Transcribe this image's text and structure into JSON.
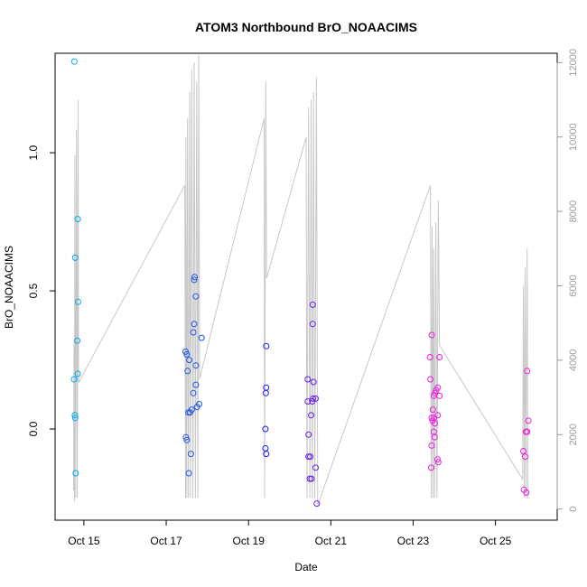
{
  "chart_data": {
    "type": "scatter",
    "title": "ATOM3 Northbound BrO_NOAACIMS",
    "xlabel": "Date",
    "ylabel": "BrO_NOAACIMS",
    "x_unit": "days (October)",
    "xlim": [
      14.3,
      26.5
    ],
    "ylim": [
      -0.33,
      1.36
    ],
    "x_ticks": [
      15,
      17,
      19,
      21,
      23,
      25
    ],
    "x_tick_labels": [
      "Oct 15",
      "Oct 17",
      "Oct 19",
      "Oct 21",
      "Oct 23",
      "Oct 25"
    ],
    "y_ticks": [
      0.0,
      0.5,
      1.0
    ],
    "y_tick_labels": [
      "0.0",
      "0.5",
      "1.0"
    ],
    "y2_ticks": [
      0,
      2000,
      4000,
      6000,
      8000,
      10000,
      12000
    ],
    "y2_tick_labels": [
      "0",
      "2000",
      "4000",
      "6000",
      "8000",
      "10000",
      "12000"
    ],
    "y2lim": [
      -300,
      12250
    ],
    "grid": false,
    "colors": {
      "altitude_line": "#c8c8c8",
      "axis": "#000000",
      "right_axis": "#9a9a9a",
      "point_scale": [
        "#00aaee",
        "#1e56e6",
        "#1a1aee",
        "#6a20e8",
        "#b51ae0",
        "#ee1ae0"
      ]
    },
    "series": [
      {
        "points": [
          {
            "x": 14.77,
            "y": 1.33,
            "c": 0
          },
          {
            "x": 14.85,
            "y": 0.76,
            "c": 0
          },
          {
            "x": 14.79,
            "y": 0.62,
            "c": 0
          },
          {
            "x": 14.86,
            "y": 0.46,
            "c": 0
          },
          {
            "x": 14.84,
            "y": 0.32,
            "c": 0
          },
          {
            "x": 14.85,
            "y": 0.2,
            "c": 0
          },
          {
            "x": 14.76,
            "y": 0.18,
            "c": 0
          },
          {
            "x": 14.78,
            "y": 0.05,
            "c": 0
          },
          {
            "x": 14.79,
            "y": 0.04,
            "c": 0
          },
          {
            "x": 14.8,
            "y": -0.16,
            "c": 0
          },
          {
            "x": 17.47,
            "y": 0.28,
            "c": 1
          },
          {
            "x": 17.5,
            "y": 0.27,
            "c": 1
          },
          {
            "x": 17.56,
            "y": 0.25,
            "c": 1
          },
          {
            "x": 17.52,
            "y": 0.21,
            "c": 1
          },
          {
            "x": 17.72,
            "y": 0.23,
            "c": 1
          },
          {
            "x": 17.68,
            "y": 0.54,
            "c": 1
          },
          {
            "x": 17.69,
            "y": 0.55,
            "c": 1
          },
          {
            "x": 17.72,
            "y": 0.48,
            "c": 1
          },
          {
            "x": 17.68,
            "y": 0.38,
            "c": 1
          },
          {
            "x": 17.66,
            "y": 0.35,
            "c": 1
          },
          {
            "x": 17.86,
            "y": 0.33,
            "c": 1
          },
          {
            "x": 17.72,
            "y": 0.16,
            "c": 1
          },
          {
            "x": 17.66,
            "y": 0.13,
            "c": 1
          },
          {
            "x": 17.8,
            "y": 0.09,
            "c": 1
          },
          {
            "x": 17.75,
            "y": 0.08,
            "c": 1
          },
          {
            "x": 17.54,
            "y": 0.06,
            "c": 1
          },
          {
            "x": 17.58,
            "y": 0.06,
            "c": 1
          },
          {
            "x": 17.62,
            "y": 0.07,
            "c": 1
          },
          {
            "x": 17.48,
            "y": -0.03,
            "c": 1
          },
          {
            "x": 17.5,
            "y": -0.04,
            "c": 1
          },
          {
            "x": 17.6,
            "y": -0.09,
            "c": 1
          },
          {
            "x": 17.55,
            "y": -0.16,
            "c": 1
          },
          {
            "x": 19.43,
            "y": 0.3,
            "c": 2
          },
          {
            "x": 19.43,
            "y": 0.15,
            "c": 2
          },
          {
            "x": 19.42,
            "y": 0.13,
            "c": 2
          },
          {
            "x": 19.41,
            "y": 0.0,
            "c": 2
          },
          {
            "x": 19.41,
            "y": -0.07,
            "c": 2
          },
          {
            "x": 19.43,
            "y": -0.09,
            "c": 2
          },
          {
            "x": 20.56,
            "y": 0.45,
            "c": 3
          },
          {
            "x": 20.56,
            "y": 0.38,
            "c": 3
          },
          {
            "x": 20.44,
            "y": 0.18,
            "c": 3
          },
          {
            "x": 20.58,
            "y": 0.17,
            "c": 3
          },
          {
            "x": 20.57,
            "y": 0.11,
            "c": 3
          },
          {
            "x": 20.63,
            "y": 0.11,
            "c": 3
          },
          {
            "x": 20.44,
            "y": 0.1,
            "c": 3
          },
          {
            "x": 20.55,
            "y": 0.1,
            "c": 3
          },
          {
            "x": 20.52,
            "y": 0.05,
            "c": 3
          },
          {
            "x": 20.46,
            "y": -0.02,
            "c": 3
          },
          {
            "x": 20.46,
            "y": -0.1,
            "c": 3
          },
          {
            "x": 20.5,
            "y": -0.1,
            "c": 3
          },
          {
            "x": 20.63,
            "y": -0.14,
            "c": 3
          },
          {
            "x": 20.49,
            "y": -0.18,
            "c": 3
          },
          {
            "x": 20.53,
            "y": -0.18,
            "c": 3
          },
          {
            "x": 20.66,
            "y": -0.27,
            "c": 3
          },
          {
            "x": 23.45,
            "y": 0.34,
            "c": 5
          },
          {
            "x": 23.41,
            "y": 0.26,
            "c": 5
          },
          {
            "x": 23.64,
            "y": 0.26,
            "c": 5
          },
          {
            "x": 23.42,
            "y": 0.18,
            "c": 5
          },
          {
            "x": 23.6,
            "y": 0.15,
            "c": 5
          },
          {
            "x": 23.53,
            "y": 0.13,
            "c": 5
          },
          {
            "x": 23.56,
            "y": 0.14,
            "c": 5
          },
          {
            "x": 23.5,
            "y": 0.12,
            "c": 5
          },
          {
            "x": 23.64,
            "y": 0.12,
            "c": 5
          },
          {
            "x": 23.48,
            "y": 0.07,
            "c": 5
          },
          {
            "x": 23.51,
            "y": 0.04,
            "c": 5
          },
          {
            "x": 23.6,
            "y": 0.05,
            "c": 5
          },
          {
            "x": 23.45,
            "y": 0.04,
            "c": 5
          },
          {
            "x": 23.47,
            "y": 0.03,
            "c": 5
          },
          {
            "x": 23.53,
            "y": 0.02,
            "c": 5
          },
          {
            "x": 23.5,
            "y": -0.01,
            "c": 5
          },
          {
            "x": 23.52,
            "y": -0.03,
            "c": 5
          },
          {
            "x": 23.45,
            "y": -0.06,
            "c": 5
          },
          {
            "x": 23.59,
            "y": -0.11,
            "c": 5
          },
          {
            "x": 23.61,
            "y": -0.12,
            "c": 5
          },
          {
            "x": 23.44,
            "y": -0.14,
            "c": 5
          },
          {
            "x": 25.77,
            "y": 0.21,
            "c": 5
          },
          {
            "x": 25.8,
            "y": 0.03,
            "c": 5
          },
          {
            "x": 25.74,
            "y": -0.01,
            "c": 5
          },
          {
            "x": 25.77,
            "y": -0.01,
            "c": 5
          },
          {
            "x": 25.68,
            "y": -0.08,
            "c": 5
          },
          {
            "x": 25.72,
            "y": -0.1,
            "c": 5
          },
          {
            "x": 25.69,
            "y": -0.22,
            "c": 5
          },
          {
            "x": 25.75,
            "y": -0.23,
            "c": 5
          }
        ]
      }
    ],
    "altitude_line": [
      [
        14.75,
        500
      ],
      [
        14.76,
        4500
      ],
      [
        14.77,
        200
      ],
      [
        14.78,
        9500
      ],
      [
        14.8,
        300
      ],
      [
        14.82,
        10200
      ],
      [
        14.84,
        300
      ],
      [
        14.86,
        11000
      ],
      [
        14.87,
        3400
      ],
      [
        17.45,
        8700
      ],
      [
        17.47,
        300
      ],
      [
        17.48,
        10000
      ],
      [
        17.5,
        300
      ],
      [
        17.52,
        10500
      ],
      [
        17.54,
        300
      ],
      [
        17.57,
        11200
      ],
      [
        17.59,
        300
      ],
      [
        17.62,
        11800
      ],
      [
        17.65,
        300
      ],
      [
        17.68,
        12000
      ],
      [
        17.71,
        300
      ],
      [
        17.74,
        11500
      ],
      [
        17.77,
        300
      ],
      [
        17.79,
        12200
      ],
      [
        17.81,
        3500
      ],
      [
        19.38,
        10500
      ],
      [
        19.39,
        300
      ],
      [
        19.42,
        11500
      ],
      [
        19.44,
        6200
      ],
      [
        20.4,
        10000
      ],
      [
        20.42,
        300
      ],
      [
        20.46,
        10800
      ],
      [
        20.49,
        300
      ],
      [
        20.52,
        11000
      ],
      [
        20.55,
        300
      ],
      [
        20.58,
        11200
      ],
      [
        20.61,
        300
      ],
      [
        20.65,
        11600
      ],
      [
        20.68,
        100
      ],
      [
        23.42,
        8700
      ],
      [
        23.44,
        300
      ],
      [
        23.46,
        7600
      ],
      [
        23.48,
        300
      ],
      [
        23.5,
        7000
      ],
      [
        23.52,
        300
      ],
      [
        23.55,
        7700
      ],
      [
        23.58,
        300
      ],
      [
        23.61,
        8300
      ],
      [
        23.64,
        4400
      ],
      [
        25.66,
        800
      ],
      [
        25.68,
        6000
      ],
      [
        25.7,
        300
      ],
      [
        25.72,
        6500
      ],
      [
        25.74,
        300
      ],
      [
        25.77,
        7000
      ],
      [
        25.79,
        300
      ],
      [
        25.82,
        300
      ]
    ]
  }
}
